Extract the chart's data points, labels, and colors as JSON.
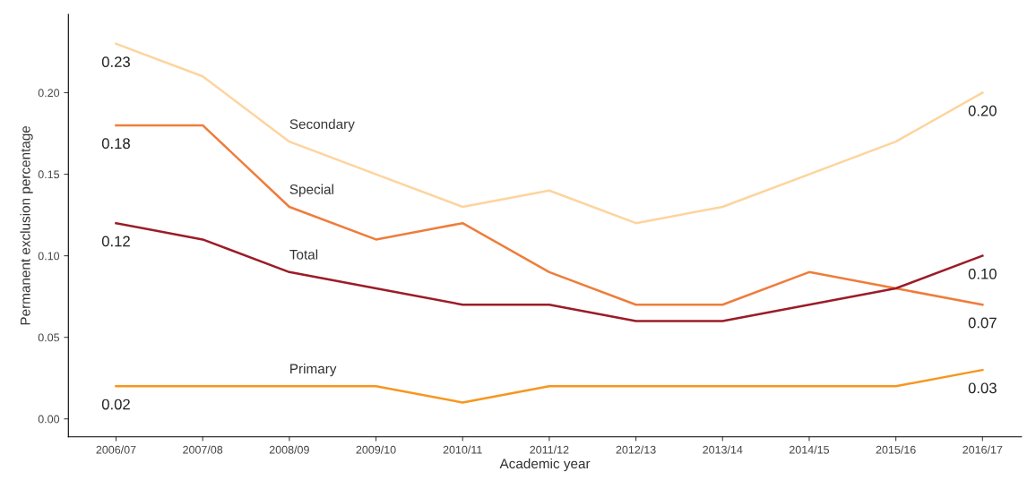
{
  "chart_data": {
    "type": "line",
    "xlabel": "Academic year",
    "ylabel": "Permanent exclusion percentage",
    "categories": [
      "2006/07",
      "2007/08",
      "2008/09",
      "2009/10",
      "2010/11",
      "2011/12",
      "2012/13",
      "2013/14",
      "2014/15",
      "2015/16",
      "2016/17"
    ],
    "series": [
      {
        "name": "Secondary",
        "color": "#fdd49e",
        "values": [
          0.23,
          0.21,
          0.17,
          0.15,
          0.13,
          0.14,
          0.12,
          0.13,
          0.15,
          0.17,
          0.2
        ],
        "value_labels": [
          "0.23",
          null,
          null,
          null,
          null,
          null,
          null,
          null,
          null,
          null,
          "0.20"
        ]
      },
      {
        "name": "Special",
        "color": "#ee7d3b",
        "values": [
          0.18,
          0.18,
          0.13,
          0.11,
          0.12,
          0.09,
          0.07,
          0.07,
          0.09,
          0.08,
          0.07
        ],
        "value_labels": [
          "0.18",
          null,
          null,
          null,
          null,
          null,
          null,
          null,
          null,
          null,
          "0.07"
        ]
      },
      {
        "name": "Total",
        "color": "#9b1c28",
        "values": [
          0.12,
          0.11,
          0.09,
          0.08,
          0.07,
          0.07,
          0.06,
          0.06,
          0.07,
          0.08,
          0.1
        ],
        "value_labels": [
          "0.12",
          null,
          null,
          null,
          null,
          null,
          null,
          null,
          null,
          null,
          "0.10"
        ]
      },
      {
        "name": "Primary",
        "color": "#f7961f",
        "values": [
          0.02,
          0.02,
          0.02,
          0.02,
          0.01,
          0.02,
          0.02,
          0.02,
          0.02,
          0.02,
          0.03
        ],
        "value_labels": [
          "0.02",
          null,
          null,
          null,
          null,
          null,
          null,
          null,
          null,
          null,
          "0.03"
        ]
      }
    ],
    "ylim": [
      -0.011,
      0.248
    ],
    "yticks": [
      {
        "value": 0,
        "label": "0.00"
      },
      0.05,
      {
        "value": 0.1,
        "label": "0.10"
      },
      0.15,
      {
        "value": 0.2,
        "label": "0.20"
      }
    ],
    "grid": false,
    "legend": false,
    "marker": "none",
    "line_style": "solid"
  }
}
